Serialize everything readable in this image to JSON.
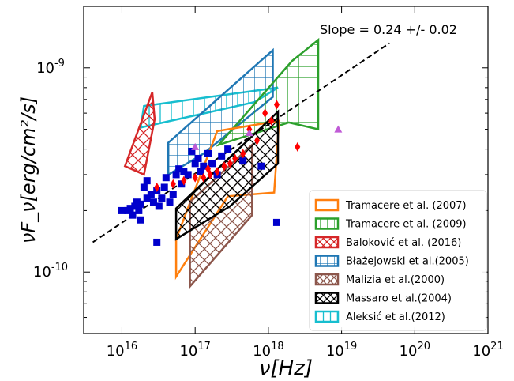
{
  "chart_data": {
    "type": "scatter",
    "xlabel": "ν[Hz]",
    "ylabel": "νF_ν[erg/cm²/s]",
    "xscale": "log",
    "yscale": "log",
    "xlim": [
      3000000000000000.0,
      1e+21
    ],
    "ylim": [
      5e-11,
      2e-09
    ],
    "x_tick_exponents": [
      16,
      17,
      18,
      19,
      20,
      21
    ],
    "y_tick_exponents": [
      -10,
      -9
    ],
    "annotation": "Slope = 0.24 +/- 0.02",
    "fit_line": {
      "style": "dashed",
      "color": "#000000",
      "x": [
        4000000000000000.0,
        4.5e+19
      ],
      "y": [
        1.4e-10,
        1.32e-09
      ]
    },
    "legend": {
      "position": "lower-right",
      "entries": [
        {
          "label": "Tramacere et al. (2007)",
          "color": "#ff7f0e",
          "hatch": "none"
        },
        {
          "label": "Tramacere et al. (2009)",
          "color": "#2ca02c",
          "hatch": "grid"
        },
        {
          "label": "Baloković et al. (2016)",
          "color": "#d62728",
          "hatch": "cross"
        },
        {
          "label": "Błażejowski et al.(2005)",
          "color": "#1f77b4",
          "hatch": "grid"
        },
        {
          "label": "Malizia et al.(2000)",
          "color": "#8c564b",
          "hatch": "cross"
        },
        {
          "label": "Massaro et al.(2004)",
          "color": "#000000",
          "hatch": "cross"
        },
        {
          "label": "Aleksić et al.(2012)",
          "color": "#17becf",
          "hatch": "vertical"
        }
      ]
    },
    "regions": [
      {
        "name": "Aleksić et al.(2012)",
        "color": "#17becf",
        "hatch": "vertical",
        "points": [
          [
            2e+16,
            6.5e-10
          ],
          [
            1.35e+18,
            8e-10
          ],
          [
            6.5e+17,
            6.8e-10
          ],
          [
            1.8e+16,
            5.1e-10
          ]
        ]
      },
      {
        "name": "Baloković et al. (2016)",
        "color": "#d62728",
        "hatch": "cross",
        "points": [
          [
            1.1e+16,
            3.3e-10
          ],
          [
            2.6e+16,
            7.6e-10
          ],
          [
            2.8e+16,
            5.6e-10
          ],
          [
            2e+16,
            3e-10
          ]
        ]
      },
      {
        "name": "Błażejowski et al.(2005)",
        "color": "#1f77b4",
        "hatch": "grid",
        "points": [
          [
            4.3e+16,
            4.3e-10
          ],
          [
            1.15e+18,
            1.22e-09
          ],
          [
            1.15e+18,
            7.2e-10
          ],
          [
            1.3e+17,
            3.8e-10
          ],
          [
            4.3e+16,
            3e-10
          ]
        ]
      },
      {
        "name": "Tramacere et al. (2009)",
        "color": "#2ca02c",
        "hatch": "grid",
        "points": [
          [
            2.1e+17,
            4.2e-10
          ],
          [
            2.1e+18,
            1.08e-09
          ],
          [
            4.8e+18,
            1.37e-09
          ],
          [
            4.8e+18,
            5e-10
          ],
          [
            1.9e+18,
            5.4e-10
          ]
        ]
      },
      {
        "name": "Tramacere et al. (2007)",
        "color": "#ff7f0e",
        "hatch": "none",
        "points": [
          [
            5.5e+16,
            9.5e-11
          ],
          [
            5.5e+16,
            1.45e-10
          ],
          [
            2e+17,
            4.9e-10
          ],
          [
            1.4e+18,
            5.5e-10
          ],
          [
            1.2e+18,
            2.45e-10
          ],
          [
            2.8e+17,
            2.35e-10
          ]
        ]
      },
      {
        "name": "Malizia et al.(2000)",
        "color": "#8c564b",
        "hatch": "cross",
        "points": [
          [
            8.5e+16,
            8.5e-11
          ],
          [
            8.5e+16,
            2.2e-10
          ],
          [
            6e+17,
            4.2e-10
          ],
          [
            6e+17,
            1.9e-10
          ]
        ]
      },
      {
        "name": "Massaro et al.(2004)",
        "color": "#000000",
        "hatch": "cross",
        "points": [
          [
            5.5e+16,
            1.45e-10
          ],
          [
            5.5e+16,
            2.05e-10
          ],
          [
            1.35e+18,
            6.1e-10
          ],
          [
            1.35e+18,
            3.4e-10
          ],
          [
            3e+17,
            2.1e-10
          ]
        ]
      }
    ],
    "series": [
      {
        "marker": "square",
        "color": "#0000cc",
        "points": [
          [
            1.2e+16,
            2e-10
          ],
          [
            1.3e+16,
            2.05e-10
          ],
          [
            1.4e+16,
            1.9e-10
          ],
          [
            1.5e+16,
            2.1e-10
          ],
          [
            1.6e+16,
            2.2e-10
          ],
          [
            1.7e+16,
            2e-10
          ],
          [
            1.8e+16,
            2.15e-10
          ],
          [
            2e+16,
            2.6e-10
          ],
          [
            2.2e+16,
            2.3e-10
          ],
          [
            2.5e+16,
            2.4e-10
          ],
          [
            2.7e+16,
            2.2e-10
          ],
          [
            3e+16,
            2.5e-10
          ],
          [
            3.2e+16,
            2.1e-10
          ],
          [
            3.5e+16,
            2.3e-10
          ],
          [
            3.8e+16,
            2.6e-10
          ],
          [
            4e+16,
            2.9e-10
          ],
          [
            4.5e+16,
            2.2e-10
          ],
          [
            5e+16,
            2.4e-10
          ],
          [
            5.5e+16,
            3e-10
          ],
          [
            6e+16,
            3.2e-10
          ],
          [
            7e+16,
            3.1e-10
          ],
          [
            8e+16,
            3e-10
          ],
          [
            9e+16,
            3.9e-10
          ],
          [
            1e+17,
            3.4e-10
          ],
          [
            1.1e+17,
            3.6e-10
          ],
          [
            1.2e+17,
            3.1e-10
          ],
          [
            1.3e+17,
            3.3e-10
          ],
          [
            1.5e+17,
            3.8e-10
          ],
          [
            1.7e+17,
            3.4e-10
          ],
          [
            2e+17,
            3e-10
          ],
          [
            2.3e+17,
            3.7e-10
          ],
          [
            2.8e+17,
            4e-10
          ],
          [
            3e+16,
            1.4e-10
          ],
          [
            2.2e+16,
            2.8e-10
          ],
          [
            6.5e+16,
            2.7e-10
          ],
          [
            1.8e+16,
            1.8e-10
          ],
          [
            1e+16,
            2e-10
          ],
          [
            4.5e+17,
            3.5e-10
          ],
          [
            8e+17,
            3.3e-10
          ],
          [
            1.3e+18,
            1.75e-10
          ]
        ]
      },
      {
        "marker": "diamond",
        "color": "#ff0000",
        "points": [
          [
            3e+16,
            2.6e-10
          ],
          [
            5e+16,
            2.7e-10
          ],
          [
            7e+16,
            2.8e-10
          ],
          [
            1e+17,
            2.9e-10
          ],
          [
            1.3e+17,
            2.9e-10
          ],
          [
            1.6e+17,
            3e-10
          ],
          [
            2e+17,
            3.1e-10
          ],
          [
            2.5e+17,
            3.3e-10
          ],
          [
            3e+17,
            3.4e-10
          ],
          [
            3.5e+17,
            3.6e-10
          ],
          [
            4.5e+17,
            3.8e-10
          ],
          [
            5.5e+17,
            5e-10
          ],
          [
            7e+17,
            4.4e-10
          ],
          [
            9e+17,
            6e-10
          ],
          [
            1.1e+18,
            5.5e-10
          ],
          [
            1.3e+18,
            6.6e-10
          ],
          [
            2.5e+18,
            4.1e-10
          ],
          [
            1.5e+17,
            3.2e-10
          ]
        ]
      },
      {
        "marker": "triangle",
        "color": "#c05bd6",
        "points": [
          [
            9e+18,
            5e-10
          ],
          [
            5.5e+17,
            4.8e-10
          ],
          [
            1e+17,
            4.1e-10
          ]
        ]
      }
    ]
  }
}
